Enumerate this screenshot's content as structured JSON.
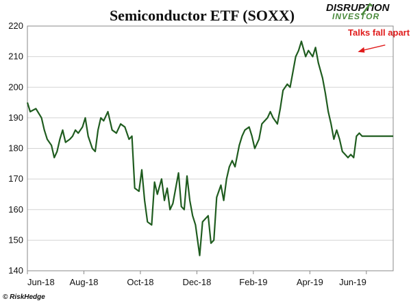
{
  "chart_data": {
    "type": "line",
    "title": "Semiconductor ETF (SOXX)",
    "xlabel": "",
    "ylabel": "",
    "ylim": [
      140,
      220
    ],
    "y_ticks": [
      140,
      150,
      160,
      170,
      180,
      190,
      200,
      210,
      220
    ],
    "x_ticks": [
      "Jun-18",
      "Aug-18",
      "Oct-18",
      "Dec-18",
      "Feb-19",
      "Apr-19",
      "Jun-19"
    ],
    "grid": true,
    "legend": "none",
    "line_color": "#1f5c1f",
    "annotation": {
      "text": "Talks fall apart",
      "color": "#e01b1b",
      "point_month": 11.6,
      "point_value": 212
    },
    "series": [
      {
        "x_months": [
          0,
          0.1,
          0.3,
          0.5,
          0.6,
          0.7,
          0.85,
          0.95,
          1.05,
          1.15,
          1.25,
          1.35,
          1.5,
          1.6,
          1.7,
          1.8,
          1.95,
          2.05,
          2.15,
          2.3,
          2.4,
          2.5,
          2.6,
          2.7,
          2.85,
          3.0,
          3.15,
          3.3,
          3.45,
          3.6,
          3.7,
          3.8,
          3.95,
          4.05,
          4.15,
          4.25,
          4.4,
          4.5,
          4.6,
          4.75,
          4.85,
          4.95,
          5.05,
          5.15,
          5.25,
          5.35,
          5.45,
          5.55,
          5.65,
          5.75,
          5.85,
          5.95,
          6.1,
          6.2,
          6.3,
          6.4,
          6.5,
          6.6,
          6.7,
          6.85,
          6.95,
          7.05,
          7.15,
          7.25,
          7.35,
          7.5,
          7.6,
          7.7,
          7.85,
          7.95,
          8.05,
          8.2,
          8.3,
          8.4,
          8.5,
          8.6,
          8.7,
          8.85,
          8.95,
          9.05,
          9.2,
          9.3,
          9.4,
          9.5,
          9.6,
          9.7,
          9.85,
          9.95,
          10.1,
          10.2,
          10.3,
          10.45,
          10.55,
          10.65,
          10.75,
          10.85,
          10.95,
          11.05,
          11.15,
          11.25,
          11.35,
          11.45,
          11.55,
          11.65,
          11.75,
          11.85,
          11.95,
          12.05,
          12.15,
          12.25,
          12.35,
          12.45,
          12.55,
          12.65,
          12.75,
          12.85,
          12.95
        ],
        "values": [
          195,
          192,
          193,
          190,
          186,
          183,
          181,
          177,
          179,
          183,
          186,
          182,
          183,
          184,
          186,
          185,
          187,
          190,
          184,
          180,
          179,
          186,
          190,
          189,
          192,
          186,
          185,
          188,
          187,
          183,
          184,
          167,
          166,
          173,
          163,
          156,
          155,
          169,
          165,
          170,
          163,
          167,
          160,
          162,
          167,
          172,
          161,
          160,
          171,
          163,
          158,
          155,
          145,
          156,
          157,
          158,
          149,
          150,
          164,
          168,
          163,
          170,
          174,
          176,
          174,
          181,
          184,
          186,
          187,
          184,
          180,
          183,
          188,
          189,
          190,
          192,
          190,
          188,
          193,
          199,
          201,
          200,
          205,
          210,
          212,
          215,
          210,
          212,
          210,
          213,
          208,
          203,
          198,
          192,
          188,
          183,
          186,
          183,
          179,
          178,
          177,
          178,
          177,
          184,
          185,
          184,
          184,
          184,
          184,
          184,
          184,
          184,
          184,
          184,
          184,
          184,
          184
        ]
      }
    ]
  },
  "logo": {
    "line1": "DISRUPTION",
    "line2": "INVESTOR"
  },
  "credit": {
    "text": "© RiskHedge"
  }
}
